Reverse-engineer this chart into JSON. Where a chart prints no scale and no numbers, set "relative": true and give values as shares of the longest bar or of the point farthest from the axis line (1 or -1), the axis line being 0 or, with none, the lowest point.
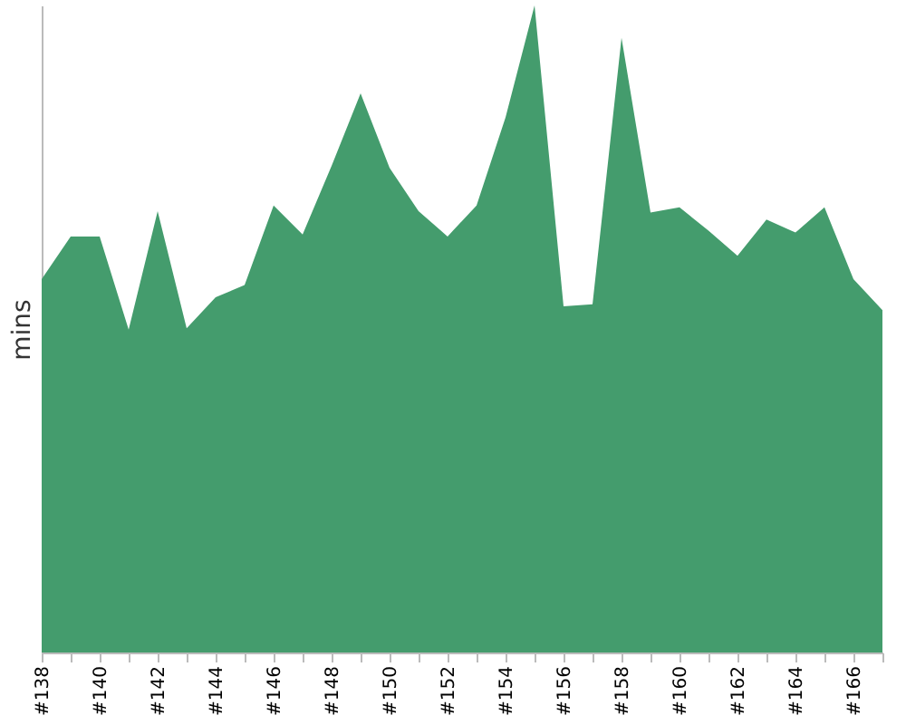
{
  "chart_data": {
    "type": "area",
    "ylabel": "mins",
    "relative": true,
    "categories": [
      "#138",
      null,
      "#140",
      null,
      "#142",
      null,
      "#144",
      null,
      "#146",
      null,
      "#148",
      null,
      "#150",
      null,
      "#152",
      null,
      "#154",
      null,
      "#156",
      null,
      "#158",
      null,
      "#160",
      null,
      "#162",
      null,
      "#164",
      null,
      "#166",
      null
    ],
    "series": [
      {
        "color": "#449c6d",
        "values": [
          0.577,
          0.643,
          0.643,
          0.499,
          0.682,
          0.501,
          0.549,
          0.568,
          0.691,
          0.646,
          0.752,
          0.864,
          0.749,
          0.682,
          0.643,
          0.691,
          0.827,
          1,
          0.535,
          0.538,
          0.95,
          0.68,
          0.688,
          0.652,
          0.613,
          0.669,
          0.649,
          0.688,
          0.577,
          0.529
        ]
      }
    ]
  }
}
